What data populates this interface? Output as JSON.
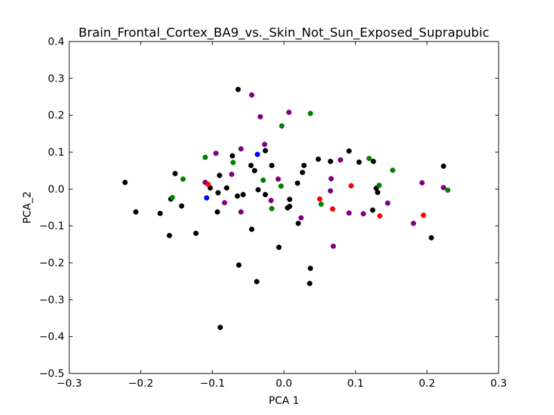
{
  "chart_data": {
    "type": "scatter",
    "title": "Brain_Frontal_Cortex_BA9_vs._Skin_Not_Sun_Exposed_Suprapubic",
    "xlabel": "PCA 1",
    "ylabel": "PCA_2",
    "xlim": [
      -0.3,
      0.3
    ],
    "ylim": [
      -0.5,
      0.4
    ],
    "xticks": [
      -0.3,
      -0.2,
      -0.1,
      0.0,
      0.1,
      0.2,
      0.3
    ],
    "xtick_labels": [
      "−0.3",
      "−0.2",
      "−0.1",
      "0.0",
      "0.1",
      "0.2",
      "0.3"
    ],
    "yticks": [
      -0.5,
      -0.4,
      -0.3,
      -0.2,
      -0.1,
      0.0,
      0.1,
      0.2,
      0.3,
      0.4
    ],
    "ytick_labels": [
      "−0.5",
      "−0.4",
      "−0.3",
      "−0.2",
      "−0.1",
      "0.0",
      "0.1",
      "0.2",
      "0.3",
      "0.4"
    ],
    "grid": false,
    "series": [
      {
        "color": "#000000",
        "points": [
          [
            -0.222,
            0.018
          ],
          [
            -0.207,
            -0.062
          ],
          [
            -0.173,
            -0.066
          ],
          [
            -0.16,
            -0.126
          ],
          [
            -0.158,
            -0.027
          ],
          [
            -0.152,
            0.042
          ],
          [
            -0.143,
            -0.046
          ],
          [
            -0.123,
            -0.12
          ],
          [
            -0.103,
            0.003
          ],
          [
            -0.092,
            -0.01
          ],
          [
            -0.093,
            -0.062
          ],
          [
            -0.09,
            0.037
          ],
          [
            -0.089,
            -0.375
          ],
          [
            -0.08,
            0.003
          ],
          [
            -0.072,
            0.09
          ],
          [
            -0.065,
            -0.019
          ],
          [
            -0.064,
            0.27
          ],
          [
            -0.063,
            -0.206
          ],
          [
            -0.057,
            -0.015
          ],
          [
            -0.046,
            0.064
          ],
          [
            -0.045,
            -0.109
          ],
          [
            -0.041,
            0.05
          ],
          [
            -0.038,
            -0.251
          ],
          [
            -0.036,
            -0.002
          ],
          [
            -0.026,
            0.104
          ],
          [
            -0.026,
            -0.015
          ],
          [
            -0.017,
            0.064
          ],
          [
            -0.007,
            -0.158
          ],
          [
            0.005,
            -0.051
          ],
          [
            0.008,
            -0.047
          ],
          [
            0.008,
            -0.028
          ],
          [
            0.019,
            0.016
          ],
          [
            0.02,
            -0.093
          ],
          [
            0.026,
            0.045
          ],
          [
            0.028,
            0.064
          ],
          [
            0.036,
            -0.256
          ],
          [
            0.037,
            -0.215
          ],
          [
            0.048,
            0.081
          ],
          [
            0.065,
            0.075
          ],
          [
            0.091,
            0.103
          ],
          [
            0.105,
            0.073
          ],
          [
            0.125,
            0.075
          ],
          [
            0.124,
            -0.057
          ],
          [
            0.129,
            0.002
          ],
          [
            0.131,
            -0.009
          ],
          [
            0.223,
            0.062
          ],
          [
            0.206,
            -0.132
          ]
        ]
      },
      {
        "color": "#800080",
        "points": [
          [
            -0.11,
            0.018
          ],
          [
            -0.095,
            0.097
          ],
          [
            -0.083,
            -0.037
          ],
          [
            -0.073,
            0.04
          ],
          [
            -0.06,
            0.109
          ],
          [
            -0.06,
            -0.062
          ],
          [
            -0.045,
            0.255
          ],
          [
            -0.033,
            0.196
          ],
          [
            -0.027,
            0.121
          ],
          [
            -0.018,
            -0.031
          ],
          [
            -0.008,
            0.027
          ],
          [
            0.007,
            0.208
          ],
          [
            0.024,
            -0.078
          ],
          [
            0.065,
            -0.005
          ],
          [
            0.066,
            0.028
          ],
          [
            0.069,
            -0.155
          ],
          [
            0.079,
            0.079
          ],
          [
            0.091,
            -0.065
          ],
          [
            0.111,
            -0.067
          ],
          [
            0.145,
            -0.038
          ],
          [
            0.181,
            -0.093
          ],
          [
            0.193,
            0.017
          ],
          [
            0.223,
            0.004
          ]
        ]
      },
      {
        "color": "#008000",
        "points": [
          [
            -0.156,
            -0.023
          ],
          [
            -0.141,
            0.027
          ],
          [
            -0.11,
            0.086
          ],
          [
            -0.071,
            0.072
          ],
          [
            -0.029,
            0.024
          ],
          [
            -0.017,
            -0.053
          ],
          [
            -0.003,
            0.171
          ],
          [
            -0.004,
            0.008
          ],
          [
            0.037,
            0.205
          ],
          [
            0.052,
            -0.041
          ],
          [
            0.119,
            0.083
          ],
          [
            0.133,
            0.01
          ],
          [
            0.152,
            0.051
          ],
          [
            0.229,
            -0.003
          ]
        ]
      },
      {
        "color": "#ff0000",
        "points": [
          [
            -0.106,
            0.013
          ],
          [
            0.05,
            -0.027
          ],
          [
            0.068,
            -0.054
          ],
          [
            0.094,
            0.009
          ],
          [
            0.134,
            -0.073
          ],
          [
            0.195,
            -0.071
          ]
        ]
      },
      {
        "color": "#0000ff",
        "points": [
          [
            -0.037,
            0.094
          ],
          [
            -0.108,
            -0.024
          ]
        ]
      }
    ]
  }
}
